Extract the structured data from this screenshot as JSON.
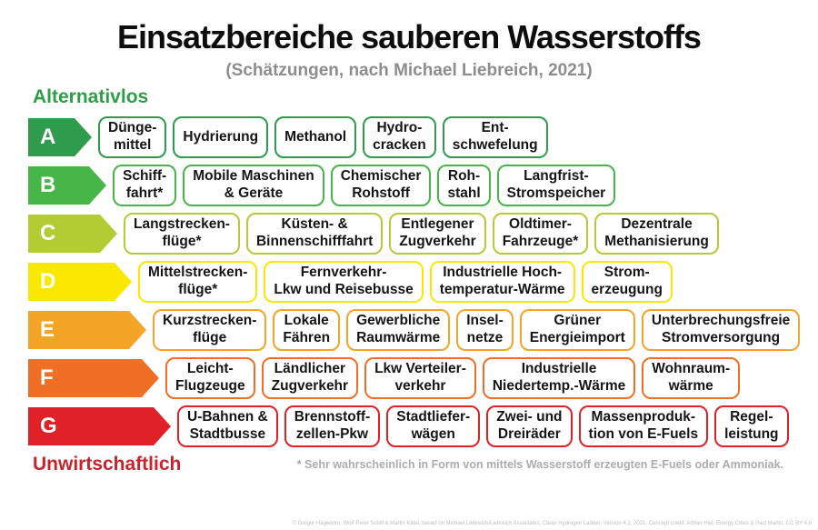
{
  "title": "Einsatzbereiche sauberen Wasserstoffs",
  "subtitle": "(Schätzungen, nach Michael Liebreich, 2021)",
  "top_label": {
    "text": "Alternativlos",
    "color": "#2f9e48"
  },
  "bottom_label": {
    "text": "Unwirtschaftlich",
    "color": "#c9242b"
  },
  "footnote": "* Sehr wahrscheinlich in Form von mittels Wasserstoff erzeugten E-Fuels oder Ammoniak.",
  "credit": "© Gregor Hagedorn, Wolf-Peter Schill & Martin Kittel, based on Michael Liebreich/Liebreich Associates, Clean Hydrogen Ladder, Version 4.1, 2021. Concept credit: Adrian Hiel, Energy Cities & Paul Martin, CC BY 4.0",
  "chart_data": {
    "type": "table",
    "title": "Einsatzbereiche sauberen Wasserstoffs",
    "subtitle": "(Schätzungen, nach Michael Liebreich, 2021)",
    "scale": {
      "best": "Alternativlos",
      "worst": "Unwirtschaftlich"
    },
    "rows": [
      {
        "grade": "A",
        "color": "#2e9b4d",
        "items": [
          "Dünge-\nmittel",
          "Hydrierung",
          "Methanol",
          "Hydro-\ncracken",
          "Ent-\nschwefelung"
        ]
      },
      {
        "grade": "B",
        "color": "#47b649",
        "items": [
          "Schiff-\nfahrt*",
          "Mobile Maschinen\n& Geräte",
          "Chemischer\nRohstoff",
          "Roh-\nstahl",
          "Langfrist-\nStromspeicher"
        ]
      },
      {
        "grade": "C",
        "color": "#b3cc33",
        "items": [
          "Langstrecken-\nflüge*",
          "Küsten- &\nBinnenschifffahrt",
          "Entlegener\nZugverkehr",
          "Oldtimer-\nFahrzeuge*",
          "Dezentrale\nMethanisierung"
        ]
      },
      {
        "grade": "D",
        "color": "#fbe800",
        "items": [
          "Mittelstrecken-\nflüge*",
          "Fernverkehr-\nLkw und Reisebusse",
          "Industrielle Hoch-\ntemperatur-Wärme",
          "Strom-\nerzeugung"
        ]
      },
      {
        "grade": "E",
        "color": "#f4a427",
        "items": [
          "Kurzstrecken-\nflüge",
          "Lokale\nFähren",
          "Gewerbliche\nRaumwärme",
          "Insel-\nnetze",
          "Grüner\nEnergieimport",
          "Unterbrechungsfreie\nStromversorgung"
        ]
      },
      {
        "grade": "F",
        "color": "#ef7025",
        "items": [
          "Leicht-\nFlugzeuge",
          "Ländlicher\nZugverkehr",
          "Lkw Verteiler-\nverkehr",
          "Industrielle\nNiedertemp.-Wärme",
          "Wohnraum-\nwärme"
        ]
      },
      {
        "grade": "G",
        "color": "#e02128",
        "items": [
          "U-Bahnen &\nStadtbusse",
          "Brennstoff-\nzellen-Pkw",
          "Stadtliefer-\nwägen",
          "Zwei- und\nDreiräder",
          "Massenproduk-\ntion von E-Fuels",
          "Regel-\nleistung"
        ]
      }
    ]
  }
}
